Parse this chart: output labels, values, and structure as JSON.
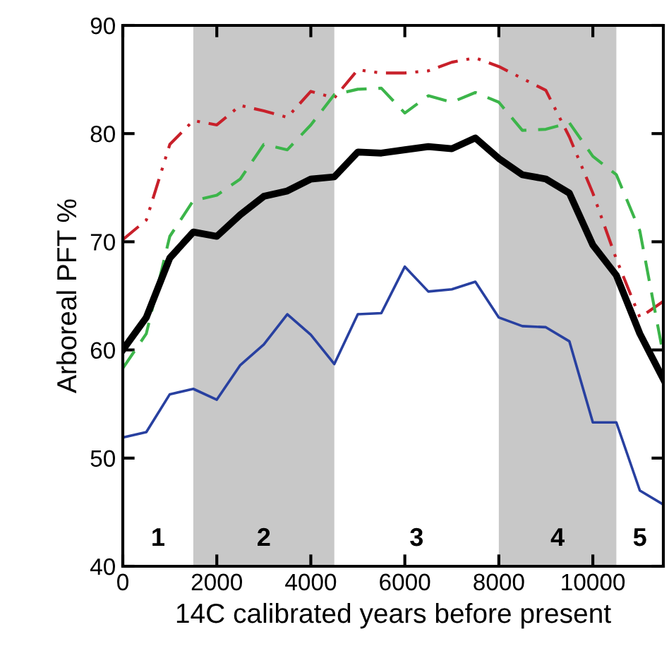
{
  "chart_data": {
    "type": "line",
    "ylabel": "Arboreal PFT %",
    "xlabel": "14C calibrated years before present",
    "x": [
      0,
      500,
      1000,
      1500,
      2000,
      2500,
      3000,
      3500,
      4000,
      4500,
      5000,
      5500,
      6000,
      6500,
      7000,
      7500,
      8000,
      8500,
      9000,
      9500,
      10000,
      10500,
      11000,
      11500
    ],
    "series": [
      {
        "color": "#c8202a",
        "line_style": "dashdot",
        "values": [
          70.2,
          72,
          79,
          81.2,
          80.8,
          82.6,
          82.1,
          81.5,
          83.9,
          83.3,
          85.9,
          85.6,
          85.6,
          85.8,
          86.6,
          87.0,
          86.2,
          85.1,
          84.0,
          79.7,
          74.5,
          68.4,
          63,
          64.5
        ]
      },
      {
        "color": "#3cb54a",
        "line_style": "dashed",
        "values": [
          58.3,
          61.5,
          70.5,
          73.8,
          74.3,
          75.8,
          79.0,
          78.5,
          80.8,
          83.6,
          84.1,
          84.2,
          81.9,
          83.5,
          82.9,
          83.8,
          82.9,
          80.3,
          80.4,
          81.0,
          77.9,
          76.2,
          71,
          59.5
        ]
      },
      {
        "color": "#2840a0",
        "line_style": "solid",
        "values": [
          51.9,
          52.4,
          55.9,
          56.4,
          55.4,
          58.6,
          60.5,
          63.3,
          61.4,
          58.7,
          63.3,
          63.4,
          67.7,
          65.4,
          65.6,
          66.3,
          63.0,
          62.2,
          62.1,
          60.8,
          53.3,
          53.3,
          47.0,
          45.7
        ]
      },
      {
        "color": "#000000",
        "line_style": "solid",
        "values": [
          60,
          63,
          68.5,
          70.9,
          70.5,
          72.5,
          74.2,
          74.7,
          75.8,
          76.0,
          78.3,
          78.2,
          78.5,
          78.8,
          78.6,
          79.6,
          77.7,
          76.2,
          75.8,
          74.5,
          69.7,
          66.9,
          61.5,
          57.3
        ]
      }
    ],
    "bands": [
      {
        "axis": "x",
        "from": 1500,
        "to": 4500,
        "color": "#c8c8c8"
      },
      {
        "axis": "x",
        "from": 8000,
        "to": 10500,
        "color": "#c8c8c8"
      }
    ],
    "annotations": [
      "1",
      "2",
      "3",
      "4",
      "5"
    ],
    "xlim": [
      0,
      11500
    ],
    "xticks": [
      0,
      2000,
      4000,
      6000,
      8000,
      10000
    ],
    "ylim": [
      40,
      90
    ],
    "yticks": [
      40,
      50,
      60,
      70,
      80,
      90
    ],
    "grid": false,
    "legend": false
  }
}
